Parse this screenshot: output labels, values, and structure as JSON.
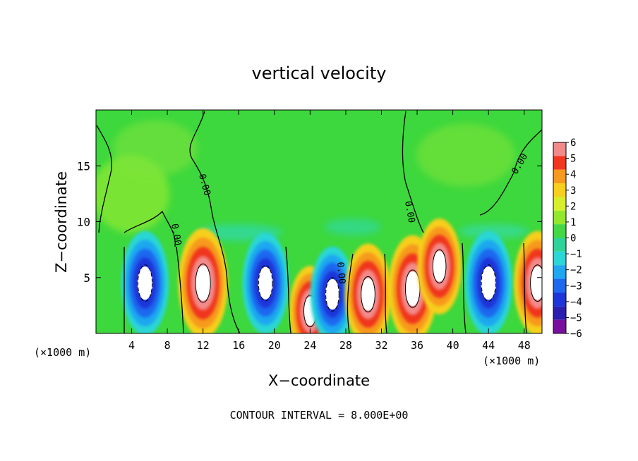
{
  "chart_data": {
    "type": "heatmap",
    "title": "vertical velocity",
    "xlabel": "X−coordinate",
    "ylabel": "Z−coordinate",
    "x_unit_left": "(×1000 m)",
    "x_unit_right": "(×1000 m)",
    "footer": "CONTOUR INTERVAL = 8.000E+00",
    "xlim": [
      0,
      50
    ],
    "ylim": [
      0,
      20
    ],
    "xticks": [
      4,
      8,
      12,
      16,
      20,
      24,
      28,
      32,
      36,
      40,
      44,
      48
    ],
    "yticks": [
      5,
      10,
      15
    ],
    "contour_label": "0.00",
    "colorbar": {
      "levels": [
        -6,
        -5,
        -4,
        -3,
        -2,
        -1,
        0,
        1,
        2,
        3,
        4,
        5,
        6
      ],
      "colors": [
        "#7a0f9f",
        "#2a1fb0",
        "#1d35d8",
        "#1e68ef",
        "#1fa7f0",
        "#2ad6d6",
        "#2fd39a",
        "#45d845",
        "#92e82c",
        "#d7ef2a",
        "#f7cf1d",
        "#f79a1f",
        "#f0361f",
        "#f28a8a"
      ]
    },
    "cells": [
      {
        "x": 1,
        "z": 4.5,
        "w": 0.0
      },
      {
        "x": 5.5,
        "z": 4.5,
        "w": -8.5
      },
      {
        "x": 12,
        "z": 4.5,
        "w": 9.5
      },
      {
        "x": 19,
        "z": 4.5,
        "w": -8.0
      },
      {
        "x": 24,
        "z": 2.0,
        "w": 6.0
      },
      {
        "x": 26.5,
        "z": 3.5,
        "w": -7.0
      },
      {
        "x": 30.5,
        "z": 3.5,
        "w": 8.0
      },
      {
        "x": 35.5,
        "z": 4.0,
        "w": 9.0
      },
      {
        "x": 38.5,
        "z": 6.0,
        "w": 7.0
      },
      {
        "x": 44,
        "z": 4.5,
        "w": -8.5
      },
      {
        "x": 49.5,
        "z": 4.5,
        "w": 8.5
      }
    ]
  }
}
